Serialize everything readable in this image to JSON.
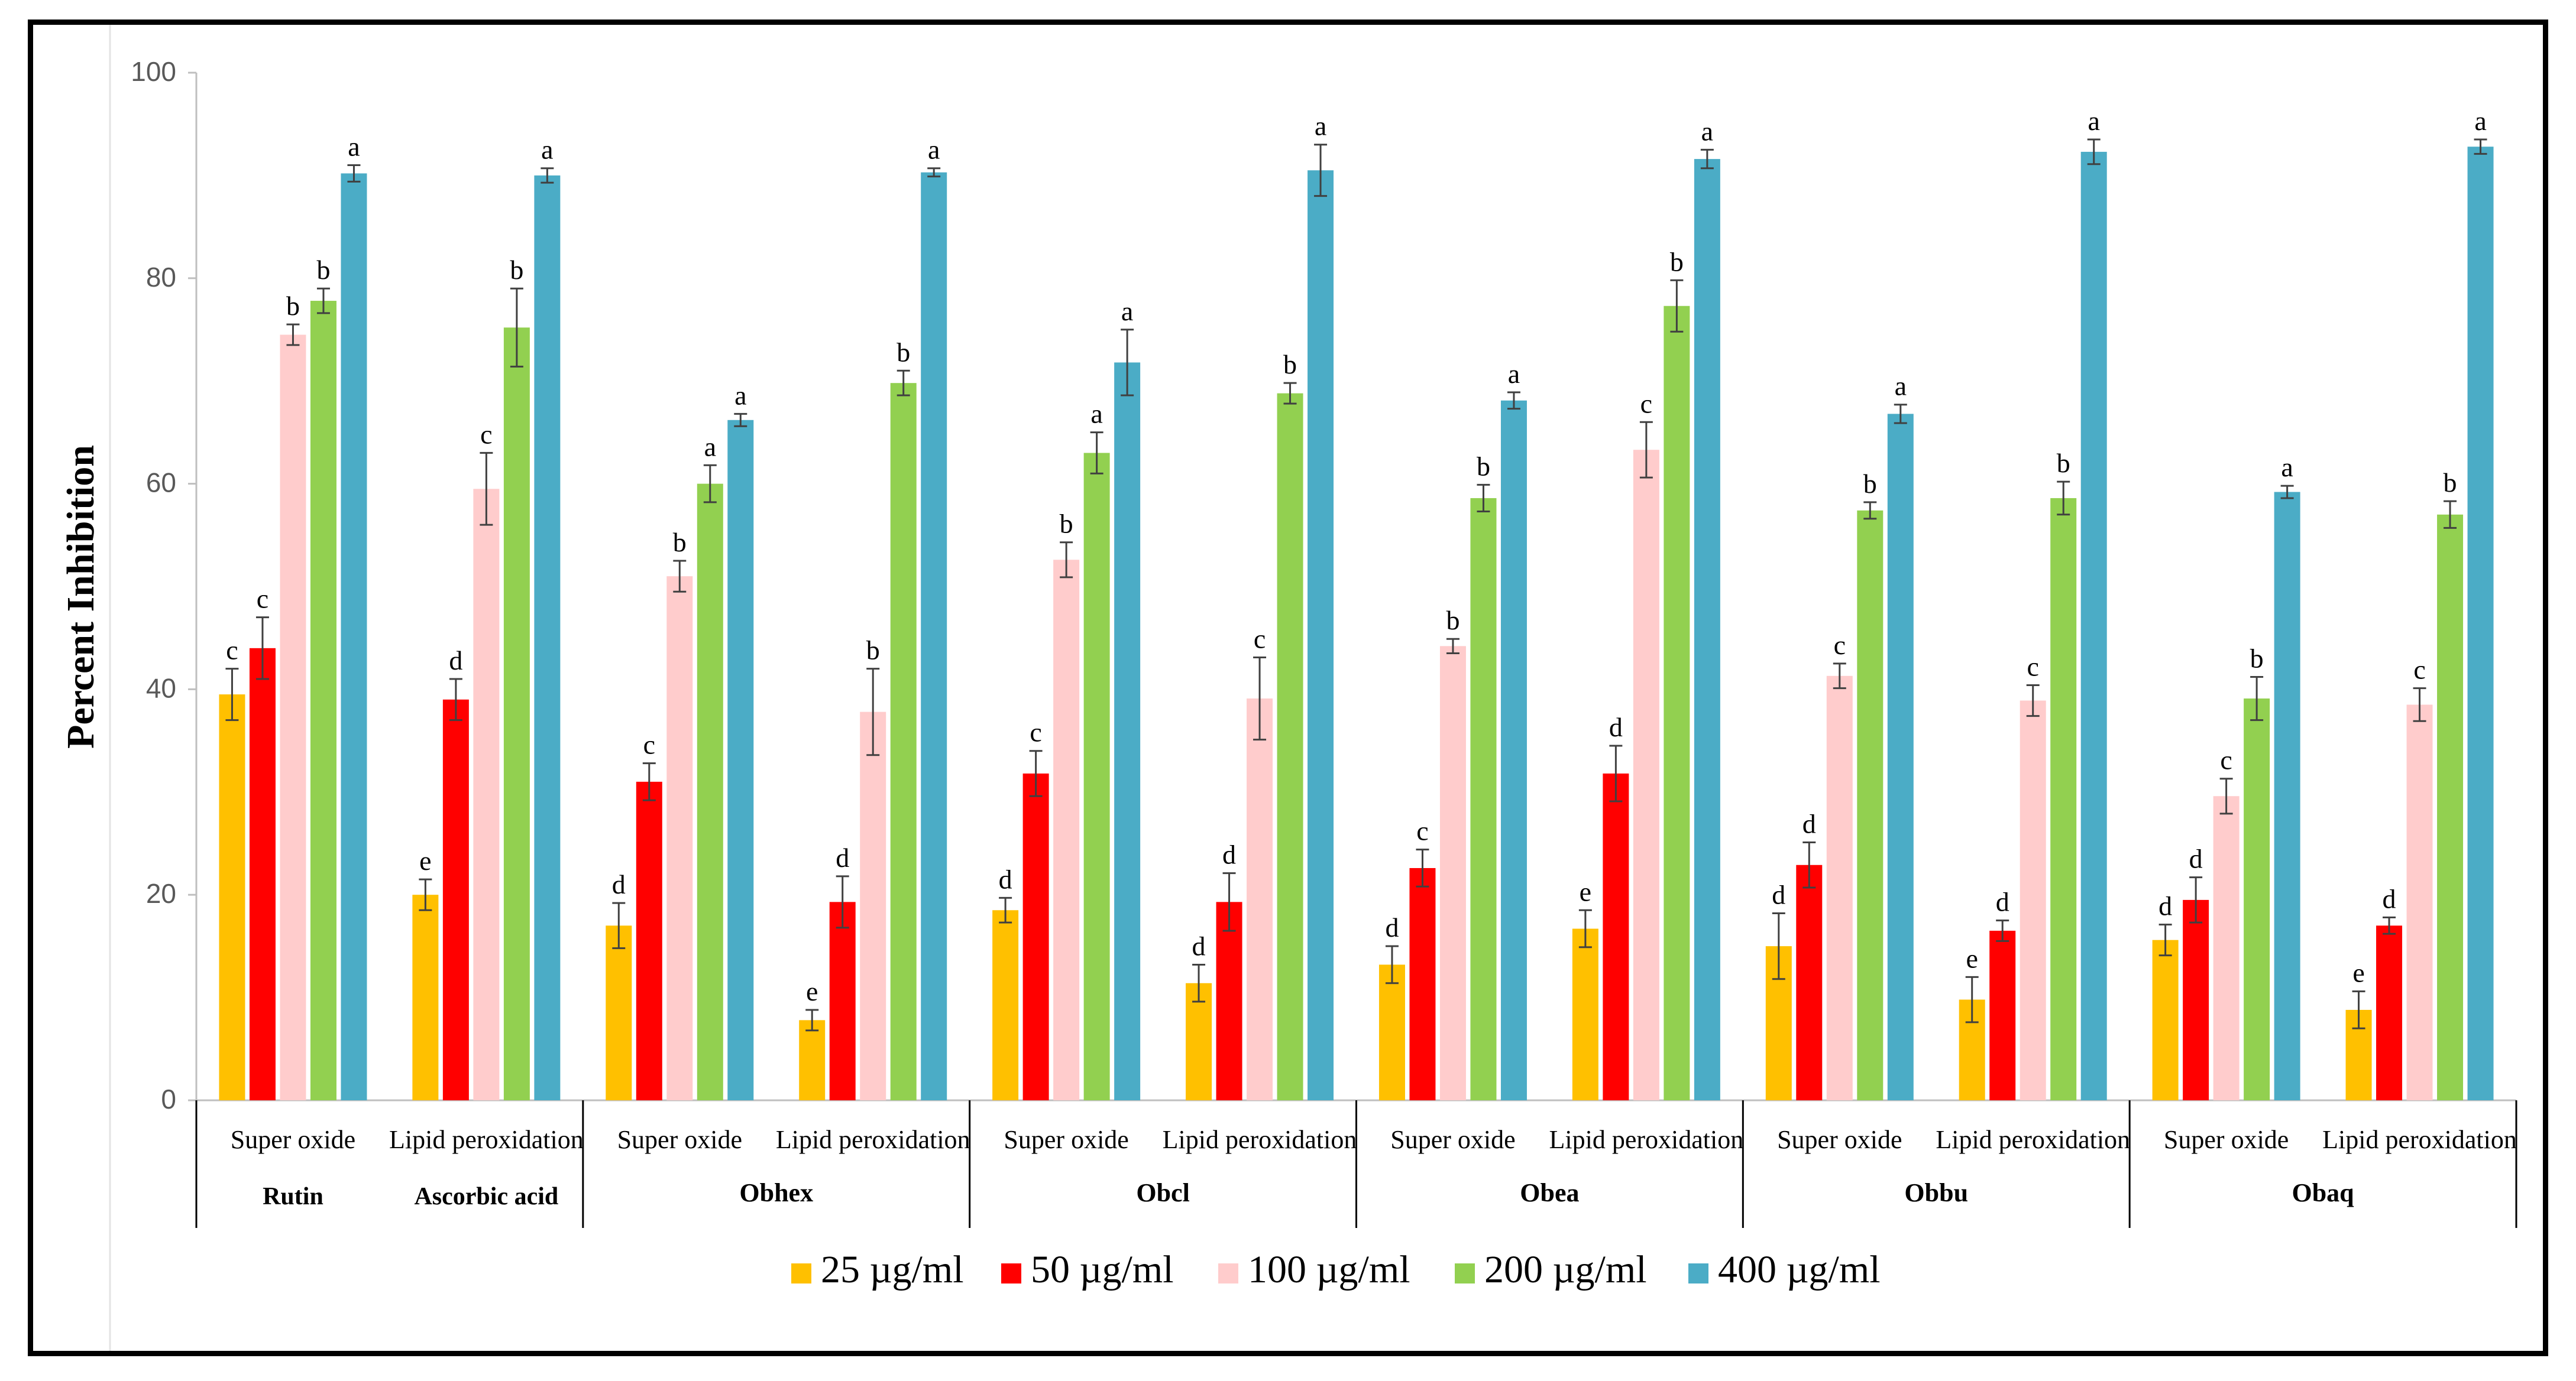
{
  "chart_data": {
    "type": "bar",
    "title": "",
    "xlabel": "",
    "ylabel": "Percent Inhibition",
    "ylim": [
      0,
      100
    ],
    "yticks": [
      0,
      20,
      40,
      60,
      80,
      100
    ],
    "grid": false,
    "legend_position": "bottom",
    "groups": [
      {
        "name": "",
        "bars": [
          {
            "assay": "Super oxide",
            "sample": "Rutin",
            "values": [
              39.5,
              44.0,
              74.5,
              77.8,
              90.2
            ],
            "errors": [
              2.5,
              3.0,
              1.0,
              1.2,
              0.8
            ],
            "letters": [
              "c",
              "c",
              "b",
              "b",
              "a"
            ]
          },
          {
            "assay": "Lipid peroxidation",
            "sample": "Ascorbic acid",
            "values": [
              20.0,
              39.0,
              59.5,
              75.2,
              90.0
            ],
            "errors": [
              1.5,
              2.0,
              3.5,
              3.8,
              0.7
            ],
            "letters": [
              "e",
              "d",
              "c",
              "b",
              "a"
            ]
          }
        ]
      },
      {
        "name": "Obhex",
        "bars": [
          {
            "assay": "Super oxide",
            "sample": "",
            "values": [
              17.0,
              31.0,
              51.0,
              60.0,
              66.2
            ],
            "errors": [
              2.2,
              1.8,
              1.5,
              1.8,
              0.6
            ],
            "letters": [
              "d",
              "c",
              "b",
              "a",
              "a"
            ]
          },
          {
            "assay": "Lipid peroxidation",
            "sample": "",
            "values": [
              7.8,
              19.3,
              37.8,
              69.8,
              90.3
            ],
            "errors": [
              1.0,
              2.5,
              4.2,
              1.2,
              0.4
            ],
            "letters": [
              "e",
              "d",
              "b",
              "b",
              "a"
            ]
          }
        ]
      },
      {
        "name": "Obcl",
        "bars": [
          {
            "assay": "Super oxide",
            "sample": "",
            "values": [
              18.5,
              31.8,
              52.6,
              63.0,
              71.8
            ],
            "errors": [
              1.2,
              2.2,
              1.7,
              2.0,
              3.2
            ],
            "letters": [
              "d",
              "c",
              "b",
              "a",
              "a"
            ]
          },
          {
            "assay": "Lipid peroxidation",
            "sample": "",
            "values": [
              11.4,
              19.3,
              39.1,
              68.8,
              90.5
            ],
            "errors": [
              1.8,
              2.8,
              4.0,
              1.0,
              2.5
            ],
            "letters": [
              "d",
              "d",
              "c",
              "b",
              "a"
            ]
          }
        ]
      },
      {
        "name": "Obea",
        "bars": [
          {
            "assay": "Super oxide",
            "sample": "",
            "values": [
              13.2,
              22.6,
              44.2,
              58.6,
              68.1
            ],
            "errors": [
              1.8,
              1.8,
              0.7,
              1.3,
              0.8
            ],
            "letters": [
              "d",
              "c",
              "b",
              "b",
              "a"
            ]
          },
          {
            "assay": "Lipid peroxidation",
            "sample": "",
            "values": [
              16.7,
              31.8,
              63.3,
              77.3,
              91.6
            ],
            "errors": [
              1.8,
              2.7,
              2.7,
              2.5,
              0.9
            ],
            "letters": [
              "e",
              "d",
              "c",
              "b",
              "a"
            ]
          }
        ]
      },
      {
        "name": "Obbu",
        "bars": [
          {
            "assay": "Super oxide",
            "sample": "",
            "values": [
              15.0,
              22.9,
              41.3,
              57.4,
              66.8
            ],
            "errors": [
              3.2,
              2.2,
              1.2,
              0.8,
              0.9
            ],
            "letters": [
              "d",
              "d",
              "c",
              "b",
              "a"
            ]
          },
          {
            "assay": "Lipid peroxidation",
            "sample": "",
            "values": [
              9.8,
              16.5,
              38.9,
              58.6,
              92.3
            ],
            "errors": [
              2.2,
              1.0,
              1.5,
              1.6,
              1.2
            ],
            "letters": [
              "e",
              "d",
              "c",
              "b",
              "a"
            ]
          }
        ]
      },
      {
        "name": "Obaq",
        "bars": [
          {
            "assay": "Super oxide",
            "sample": "",
            "values": [
              15.6,
              19.5,
              29.6,
              39.1,
              59.2
            ],
            "errors": [
              1.5,
              2.2,
              1.7,
              2.1,
              0.6
            ],
            "letters": [
              "d",
              "d",
              "c",
              "b",
              "a"
            ]
          },
          {
            "assay": "Lipid peroxidation",
            "sample": "",
            "values": [
              8.8,
              17.0,
              38.5,
              57.0,
              92.8
            ],
            "errors": [
              1.8,
              0.8,
              1.6,
              1.3,
              0.7
            ],
            "letters": [
              "e",
              "d",
              "c",
              "b",
              "a"
            ]
          }
        ]
      }
    ],
    "series": [
      {
        "name": "25 µg/ml",
        "color": "#ffc000"
      },
      {
        "name": "50 µg/ml",
        "color": "#ff0000"
      },
      {
        "name": "100 µg/ml",
        "color": "#ffcccc"
      },
      {
        "name": "200 µg/ml",
        "color": "#92d050"
      },
      {
        "name": "400 µg/ml",
        "color": "#4bacc6"
      }
    ]
  }
}
